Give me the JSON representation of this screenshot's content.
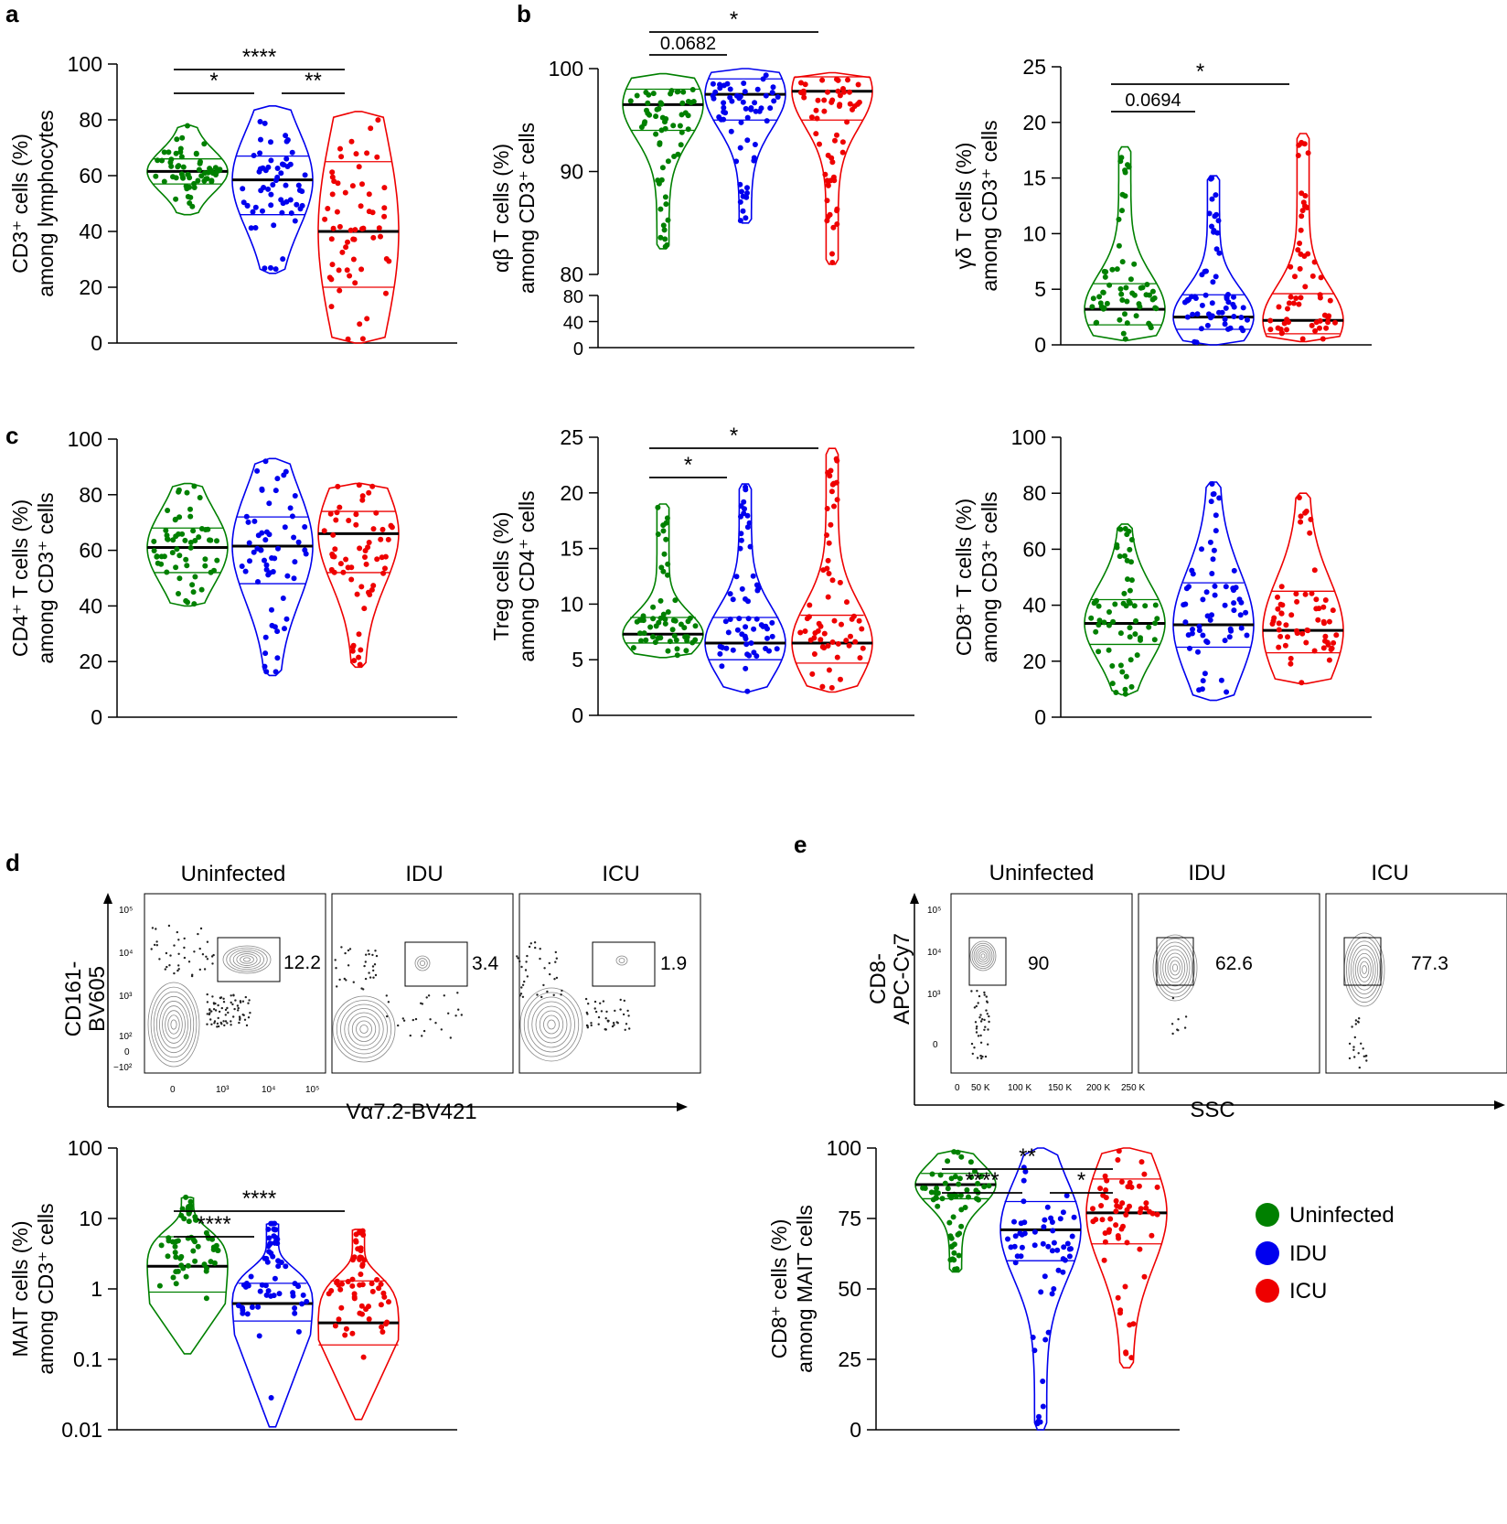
{
  "colors": {
    "uninfected": "#008000",
    "idu": "#0000ee",
    "icu": "#ee0000",
    "contour": "#888888"
  },
  "panel_labels": {
    "a": "a",
    "b": "b",
    "c": "c",
    "d": "d",
    "e": "e"
  },
  "legend": {
    "items": [
      "Uninfected",
      "IDU",
      "ICU"
    ]
  },
  "flow_d": {
    "titles": [
      "Uninfected",
      "IDU",
      "ICU"
    ],
    "gate_values": [
      "12.2",
      "3.4",
      "1.9"
    ],
    "ylabel": [
      "CD161-",
      "BV605"
    ],
    "xlabel": "Vα7.2-BV421",
    "yticks": [
      "10⁵",
      "10⁴",
      "10³",
      "10²",
      "0",
      "−10²"
    ],
    "xticks": [
      "0",
      "10³",
      "10⁴",
      "10⁵"
    ]
  },
  "flow_e": {
    "titles": [
      "Uninfected",
      "IDU",
      "ICU"
    ],
    "gate_values": [
      "90",
      "62.6",
      "77.3"
    ],
    "ylabel": [
      "CD8-",
      "APC-Cy7"
    ],
    "xlabel": "SSC",
    "yticks": [
      "10⁵",
      "10⁴",
      "10³",
      "0"
    ],
    "xticks": [
      "0",
      "50 K",
      "100 K",
      "150 K",
      "200 K",
      "250 K"
    ]
  },
  "chart_data": [
    {
      "id": "a",
      "type": "violin",
      "ylabel": [
        "CD3⁺ cells (%)",
        "among lymphocytes"
      ],
      "scale": "linear",
      "ylim": [
        0,
        100
      ],
      "yticks": [
        "0",
        "20",
        "40",
        "60",
        "80",
        "100"
      ],
      "groups": [
        "Uninfected",
        "IDU",
        "ICU"
      ],
      "series": [
        {
          "name": "Uninfected",
          "median": 61.5,
          "q1": 57,
          "q3": 66,
          "min": 46,
          "max": 78
        },
        {
          "name": "IDU",
          "median": 58.5,
          "q1": 46,
          "q3": 67,
          "min": 25,
          "max": 85
        },
        {
          "name": "ICU",
          "median": 40,
          "q1": 20,
          "q3": 65,
          "min": 0,
          "max": 83
        }
      ],
      "significance": [
        {
          "from": 0,
          "to": 2,
          "label": "****"
        },
        {
          "from": 0,
          "to": 1,
          "label": "*"
        },
        {
          "from": 1,
          "to": 2,
          "label": "**"
        }
      ]
    },
    {
      "id": "b1",
      "type": "violin",
      "ylabel": [
        "αβ T cells (%)",
        "among CD3⁺ cells"
      ],
      "scale": "broken",
      "ylim": [
        0,
        100
      ],
      "yticks": [
        "100",
        "90",
        "80",
        "80",
        "40",
        "0"
      ],
      "groups": [
        "Uninfected",
        "IDU",
        "ICU"
      ],
      "series": [
        {
          "name": "Uninfected",
          "median": 96.5,
          "q1": 94,
          "q3": 98,
          "min": 82.5,
          "max": 99.5
        },
        {
          "name": "IDU",
          "median": 97.5,
          "q1": 95,
          "q3": 99,
          "min": 85,
          "max": 100
        },
        {
          "name": "ICU",
          "median": 97.8,
          "q1": 95,
          "q3": 99.2,
          "min": 81,
          "max": 99.6
        }
      ],
      "significance": [
        {
          "from": 0,
          "to": 2,
          "label": "*"
        },
        {
          "from": 0,
          "to": 1,
          "label": "0.0682"
        }
      ]
    },
    {
      "id": "b2",
      "type": "violin",
      "ylabel": [
        "γδ T cells (%)",
        "among CD3⁺ cells"
      ],
      "scale": "linear",
      "ylim": [
        0,
        25
      ],
      "yticks": [
        "0",
        "5",
        "10",
        "15",
        "20",
        "25"
      ],
      "groups": [
        "Uninfected",
        "IDU",
        "ICU"
      ],
      "series": [
        {
          "name": "Uninfected",
          "median": 3.2,
          "q1": 1.8,
          "q3": 5.5,
          "min": 0.4,
          "max": 17.8
        },
        {
          "name": "IDU",
          "median": 2.5,
          "q1": 1.4,
          "q3": 4.5,
          "min": 0,
          "max": 15.2
        },
        {
          "name": "ICU",
          "median": 2.2,
          "q1": 1,
          "q3": 4.6,
          "min": 0.3,
          "max": 19
        }
      ],
      "significance": [
        {
          "from": 0,
          "to": 2,
          "label": "*"
        },
        {
          "from": 0,
          "to": 1,
          "label": "0.0694"
        }
      ]
    },
    {
      "id": "c1",
      "type": "violin",
      "ylabel": [
        "CD4⁺ T cells (%)",
        "among CD3⁺ cells"
      ],
      "scale": "linear",
      "ylim": [
        0,
        100
      ],
      "yticks": [
        "0",
        "20",
        "40",
        "60",
        "80",
        "100"
      ],
      "groups": [
        "Uninfected",
        "IDU",
        "ICU"
      ],
      "series": [
        {
          "name": "Uninfected",
          "median": 61,
          "q1": 52,
          "q3": 68,
          "min": 40,
          "max": 84
        },
        {
          "name": "IDU",
          "median": 61.5,
          "q1": 48,
          "q3": 72,
          "min": 15,
          "max": 93
        },
        {
          "name": "ICU",
          "median": 66,
          "q1": 52,
          "q3": 74,
          "min": 18,
          "max": 84
        }
      ],
      "significance": []
    },
    {
      "id": "c2",
      "type": "violin",
      "ylabel": [
        "Treg cells (%)",
        "among CD4⁺ cells"
      ],
      "scale": "linear",
      "ylim": [
        0,
        25
      ],
      "yticks": [
        "0",
        "5",
        "10",
        "15",
        "20",
        "25"
      ],
      "groups": [
        "Uninfected",
        "IDU",
        "ICU"
      ],
      "series": [
        {
          "name": "Uninfected",
          "median": 7.3,
          "q1": 6.5,
          "q3": 8.8,
          "min": 5.2,
          "max": 19
        },
        {
          "name": "IDU",
          "median": 6.5,
          "q1": 5,
          "q3": 8.8,
          "min": 2.1,
          "max": 20.8
        },
        {
          "name": "ICU",
          "median": 6.5,
          "q1": 4.7,
          "q3": 9,
          "min": 2.1,
          "max": 24
        }
      ],
      "significance": [
        {
          "from": 0,
          "to": 2,
          "label": "*"
        },
        {
          "from": 0,
          "to": 1,
          "label": "*"
        }
      ]
    },
    {
      "id": "c3",
      "type": "violin",
      "ylabel": [
        "CD8⁺ T cells (%)",
        "among CD3⁺ cells"
      ],
      "scale": "linear",
      "ylim": [
        0,
        100
      ],
      "yticks": [
        "0",
        "20",
        "40",
        "60",
        "80",
        "100"
      ],
      "groups": [
        "Uninfected",
        "IDU",
        "ICU"
      ],
      "series": [
        {
          "name": "Uninfected",
          "median": 33.5,
          "q1": 26,
          "q3": 42,
          "min": 8,
          "max": 69
        },
        {
          "name": "IDU",
          "median": 33,
          "q1": 25,
          "q3": 48,
          "min": 6,
          "max": 84
        },
        {
          "name": "ICU",
          "median": 31,
          "q1": 23,
          "q3": 45,
          "min": 12,
          "max": 80
        }
      ],
      "significance": []
    },
    {
      "id": "d",
      "type": "violin",
      "ylabel": [
        "MAIT cells (%)",
        "among CD3⁺ cells"
      ],
      "scale": "log",
      "ylim": [
        0.01,
        100
      ],
      "yticks": [
        "0.01",
        "0.1",
        "1",
        "10",
        "100"
      ],
      "groups": [
        "Uninfected",
        "IDU",
        "ICU"
      ],
      "series": [
        {
          "name": "Uninfected",
          "median": 2.1,
          "q1": 0.9,
          "q3": 5.5,
          "min": 0.12,
          "max": 20
        },
        {
          "name": "IDU",
          "median": 0.62,
          "q1": 0.35,
          "q3": 1.2,
          "min": 0.011,
          "max": 8.5
        },
        {
          "name": "ICU",
          "median": 0.33,
          "q1": 0.16,
          "q3": 1.3,
          "min": 0.014,
          "max": 7
        }
      ],
      "significance": [
        {
          "from": 0,
          "to": 2,
          "label": "****"
        },
        {
          "from": 0,
          "to": 1,
          "label": "****"
        }
      ]
    },
    {
      "id": "e",
      "type": "violin",
      "ylabel": [
        "CD8⁺ cells (%)",
        "among MAIT cells"
      ],
      "scale": "linear",
      "ylim": [
        0,
        100
      ],
      "yticks": [
        "0",
        "25",
        "50",
        "75",
        "100"
      ],
      "groups": [
        "Uninfected",
        "IDU",
        "ICU"
      ],
      "series": [
        {
          "name": "Uninfected",
          "median": 87,
          "q1": 82,
          "q3": 91,
          "min": 56,
          "max": 99
        },
        {
          "name": "IDU",
          "median": 71,
          "q1": 60,
          "q3": 81,
          "min": 0,
          "max": 100
        },
        {
          "name": "ICU",
          "median": 77,
          "q1": 66,
          "q3": 89,
          "min": 22,
          "max": 100
        }
      ],
      "significance": [
        {
          "from": 0,
          "to": 2,
          "label": "**"
        },
        {
          "from": 0,
          "to": 1,
          "label": "****"
        },
        {
          "from": 1,
          "to": 2,
          "label": "*"
        }
      ]
    }
  ]
}
